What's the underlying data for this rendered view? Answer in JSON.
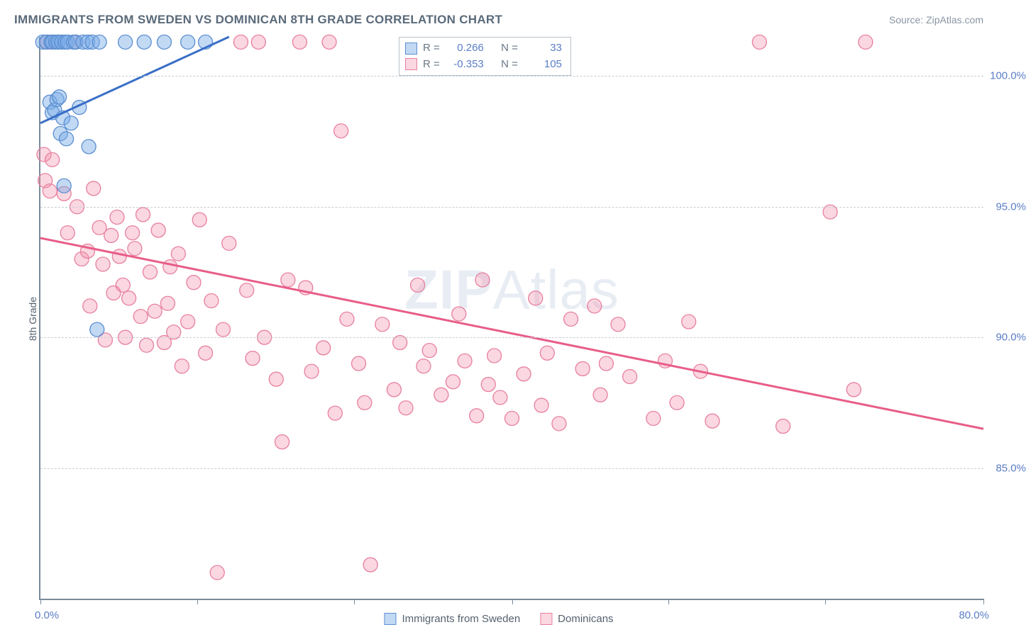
{
  "title": "IMMIGRANTS FROM SWEDEN VS DOMINICAN 8TH GRADE CORRELATION CHART",
  "source_label": "Source: ZipAtlas.com",
  "watermark": {
    "prefix": "ZIP",
    "suffix": "Atlas"
  },
  "yaxis_title": "8th Grade",
  "x_axis": {
    "min": 0,
    "max": 80,
    "label_left": "0.0%",
    "label_right": "80.0%",
    "ticks": [
      0,
      13.3,
      26.6,
      40,
      53.3,
      66.6,
      80
    ]
  },
  "y_axis": {
    "min": 80,
    "max": 101.5,
    "gridlines": [
      {
        "v": 100,
        "label": "100.0%"
      },
      {
        "v": 95,
        "label": "95.0%"
      },
      {
        "v": 90,
        "label": "90.0%"
      },
      {
        "v": 85,
        "label": "85.0%"
      }
    ]
  },
  "series": [
    {
      "id": "sweden",
      "name": "Immigrants from Sweden",
      "fill": "rgba(120,170,230,0.45)",
      "stroke": "#5a8ed0",
      "line_stroke": "#3a6fc7",
      "line_width": 3,
      "r_stat": "0.266",
      "n_stat": "33",
      "marker_r": 10,
      "trend": {
        "x1": 0,
        "y1": 98.2,
        "x2": 16,
        "y2": 101.5
      },
      "points": [
        [
          0.2,
          101.3
        ],
        [
          0.5,
          101.3
        ],
        [
          0.8,
          99.0
        ],
        [
          0.9,
          101.3
        ],
        [
          1.0,
          98.6
        ],
        [
          1.0,
          101.3
        ],
        [
          1.2,
          98.7
        ],
        [
          1.3,
          101.3
        ],
        [
          1.4,
          99.1
        ],
        [
          1.5,
          101.3
        ],
        [
          1.6,
          99.2
        ],
        [
          1.7,
          97.8
        ],
        [
          1.8,
          101.3
        ],
        [
          1.9,
          98.4
        ],
        [
          2.0,
          95.8
        ],
        [
          2.1,
          101.3
        ],
        [
          2.2,
          97.6
        ],
        [
          2.3,
          101.3
        ],
        [
          2.6,
          98.2
        ],
        [
          2.8,
          101.3
        ],
        [
          3.0,
          101.3
        ],
        [
          3.3,
          98.8
        ],
        [
          3.6,
          101.3
        ],
        [
          4.0,
          101.3
        ],
        [
          4.1,
          97.3
        ],
        [
          4.4,
          101.3
        ],
        [
          4.8,
          90.3
        ],
        [
          5.0,
          101.3
        ],
        [
          7.2,
          101.3
        ],
        [
          8.8,
          101.3
        ],
        [
          10.5,
          101.3
        ],
        [
          12.5,
          101.3
        ],
        [
          14.0,
          101.3
        ]
      ]
    },
    {
      "id": "dominicans",
      "name": "Dominicans",
      "fill": "rgba(240,140,170,0.35)",
      "stroke": "#e87f9e",
      "line_stroke": "#e85d88",
      "line_width": 3,
      "r_stat": "-0.353",
      "n_stat": "105",
      "marker_r": 10,
      "trend": {
        "x1": 0,
        "y1": 93.8,
        "x2": 80,
        "y2": 86.5
      },
      "points": [
        [
          0.3,
          97.0
        ],
        [
          0.4,
          96.0
        ],
        [
          0.6,
          101.3
        ],
        [
          0.8,
          95.6
        ],
        [
          1.0,
          96.8
        ],
        [
          1.5,
          101.3
        ],
        [
          2.0,
          95.5
        ],
        [
          2.3,
          94.0
        ],
        [
          3.0,
          101.3
        ],
        [
          3.1,
          95.0
        ],
        [
          3.5,
          93.0
        ],
        [
          4.0,
          93.3
        ],
        [
          4.2,
          91.2
        ],
        [
          4.5,
          95.7
        ],
        [
          5.0,
          94.2
        ],
        [
          5.3,
          92.8
        ],
        [
          5.5,
          89.9
        ],
        [
          6.0,
          93.9
        ],
        [
          6.2,
          91.7
        ],
        [
          6.5,
          94.6
        ],
        [
          6.7,
          93.1
        ],
        [
          7.0,
          92.0
        ],
        [
          7.2,
          90.0
        ],
        [
          7.5,
          91.5
        ],
        [
          7.8,
          94.0
        ],
        [
          8.0,
          93.4
        ],
        [
          8.5,
          90.8
        ],
        [
          8.7,
          94.7
        ],
        [
          9.0,
          89.7
        ],
        [
          9.3,
          92.5
        ],
        [
          9.7,
          91.0
        ],
        [
          10.0,
          94.1
        ],
        [
          10.5,
          89.8
        ],
        [
          10.8,
          91.3
        ],
        [
          11.0,
          92.7
        ],
        [
          11.3,
          90.2
        ],
        [
          11.7,
          93.2
        ],
        [
          12.0,
          88.9
        ],
        [
          12.5,
          90.6
        ],
        [
          13.0,
          92.1
        ],
        [
          13.5,
          94.5
        ],
        [
          14.0,
          89.4
        ],
        [
          14.5,
          91.4
        ],
        [
          15.0,
          81.0
        ],
        [
          15.5,
          90.3
        ],
        [
          16.0,
          93.6
        ],
        [
          17.0,
          101.3
        ],
        [
          17.5,
          91.8
        ],
        [
          18.0,
          89.2
        ],
        [
          18.5,
          101.3
        ],
        [
          19.0,
          90.0
        ],
        [
          20.0,
          88.4
        ],
        [
          20.5,
          86.0
        ],
        [
          21.0,
          92.2
        ],
        [
          22.0,
          101.3
        ],
        [
          22.5,
          91.9
        ],
        [
          23.0,
          88.7
        ],
        [
          24.0,
          89.6
        ],
        [
          24.5,
          101.3
        ],
        [
          25.0,
          87.1
        ],
        [
          25.5,
          97.9
        ],
        [
          26.0,
          90.7
        ],
        [
          27.0,
          89.0
        ],
        [
          27.5,
          87.5
        ],
        [
          28.0,
          81.3
        ],
        [
          29.0,
          90.5
        ],
        [
          30.0,
          88.0
        ],
        [
          30.5,
          89.8
        ],
        [
          31.0,
          87.3
        ],
        [
          32.0,
          92.0
        ],
        [
          32.5,
          88.9
        ],
        [
          33.0,
          89.5
        ],
        [
          34.0,
          87.8
        ],
        [
          35.0,
          88.3
        ],
        [
          35.5,
          90.9
        ],
        [
          36.0,
          89.1
        ],
        [
          37.0,
          87.0
        ],
        [
          37.5,
          92.2
        ],
        [
          38.0,
          88.2
        ],
        [
          38.5,
          89.3
        ],
        [
          39.0,
          87.7
        ],
        [
          40.0,
          86.9
        ],
        [
          41.0,
          88.6
        ],
        [
          42.0,
          91.5
        ],
        [
          42.5,
          87.4
        ],
        [
          43.0,
          89.4
        ],
        [
          44.0,
          86.7
        ],
        [
          45.0,
          90.7
        ],
        [
          46.0,
          88.8
        ],
        [
          47.0,
          91.2
        ],
        [
          47.5,
          87.8
        ],
        [
          48.0,
          89.0
        ],
        [
          49.0,
          90.5
        ],
        [
          50.0,
          88.5
        ],
        [
          52.0,
          86.9
        ],
        [
          53.0,
          89.1
        ],
        [
          54.0,
          87.5
        ],
        [
          55.0,
          90.6
        ],
        [
          56.0,
          88.7
        ],
        [
          57.0,
          86.8
        ],
        [
          61.0,
          101.3
        ],
        [
          63.0,
          86.6
        ],
        [
          67.0,
          94.8
        ],
        [
          69.0,
          88.0
        ],
        [
          70.0,
          101.3
        ]
      ]
    }
  ]
}
